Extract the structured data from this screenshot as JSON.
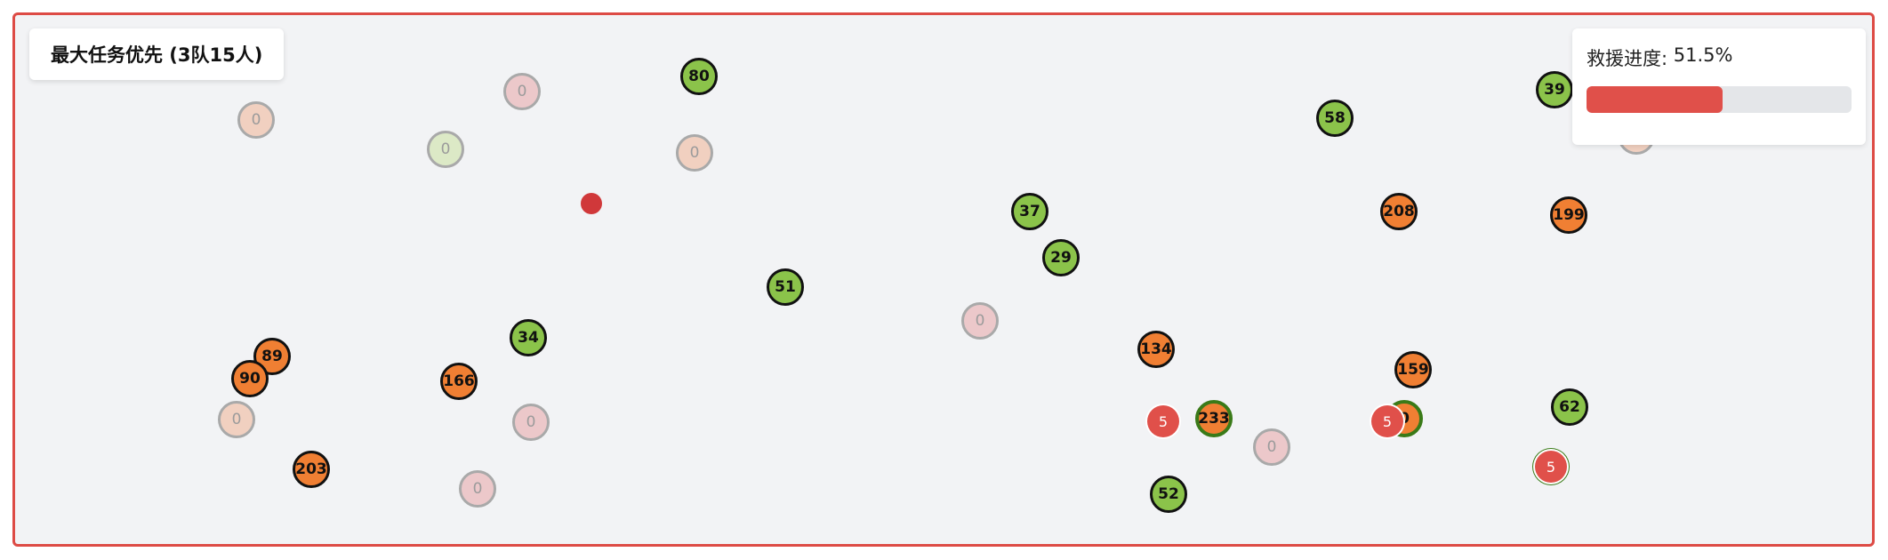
{
  "title": "最大任务优先 (3队15人)",
  "progress": {
    "label": "救援进度: ",
    "value_text": "51.5%",
    "fraction": 0.515
  },
  "colors": {
    "border": "#dd4b45",
    "background": "#f2f3f5",
    "active_green": "#8bc34a",
    "active_orange": "#f07f33",
    "team_red": "#e0504a",
    "hq_red": "#d0383a",
    "assigned_ring": "#3a7a18"
  },
  "victims_active_green": [
    "80",
    "37",
    "29",
    "51",
    "34",
    "58",
    "39",
    "62",
    "52"
  ],
  "victims_active_orange": [
    "208",
    "199",
    "134",
    "159",
    "89",
    "90",
    "166",
    "203"
  ],
  "victims_rescued": [
    "0",
    "0",
    "0",
    "0",
    "0",
    "0",
    "0",
    "0",
    "0",
    "0"
  ],
  "victims_assigned": [
    "233",
    "0"
  ],
  "teams": [
    "5",
    "5",
    "5"
  ]
}
